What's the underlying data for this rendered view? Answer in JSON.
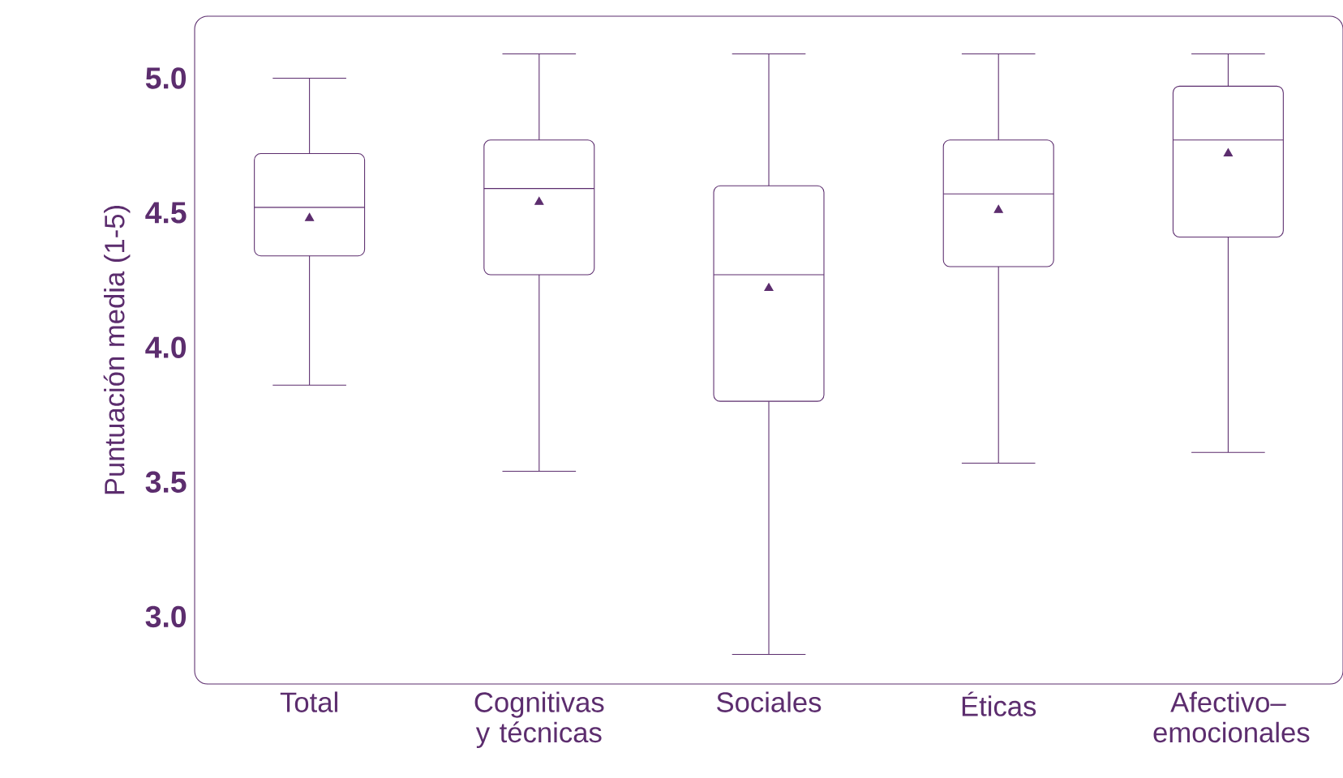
{
  "chart_data": {
    "type": "box",
    "ylabel": "Puntuación media (1-5)",
    "categories": [
      "Total",
      "Cognitivas y técnicas",
      "Sociales",
      "Éticas",
      "Afectivo–emocionales"
    ],
    "ylim": [
      2.75,
      5.23
    ],
    "yticks": [
      {
        "value": 3,
        "label": "3.0"
      },
      {
        "value": 3.5,
        "label": "3.5"
      },
      {
        "value": 4,
        "label": "4.0"
      },
      {
        "value": 4.5,
        "label": "4.5"
      },
      {
        "value": 5,
        "label": "5.0"
      }
    ],
    "marker": "triangle",
    "series": [
      {
        "color": "#5c2d6e",
        "boxes": [
          {
            "low": 3.86,
            "q1": 4.34,
            "median": 4.52,
            "q3": 4.72,
            "high": 5.0,
            "mean": 4.48
          },
          {
            "low": 3.54,
            "q1": 4.27,
            "median": 4.59,
            "q3": 4.77,
            "high": 5.09,
            "mean": 4.54
          },
          {
            "low": 2.86,
            "q1": 3.8,
            "median": 4.27,
            "q3": 4.6,
            "high": 5.09,
            "mean": 4.22
          },
          {
            "low": 3.57,
            "q1": 4.3,
            "median": 4.57,
            "q3": 4.77,
            "high": 5.09,
            "mean": 4.51
          },
          {
            "low": 3.61,
            "q1": 4.41,
            "median": 4.77,
            "q3": 4.97,
            "high": 5.09,
            "mean": 4.72
          }
        ]
      }
    ]
  }
}
